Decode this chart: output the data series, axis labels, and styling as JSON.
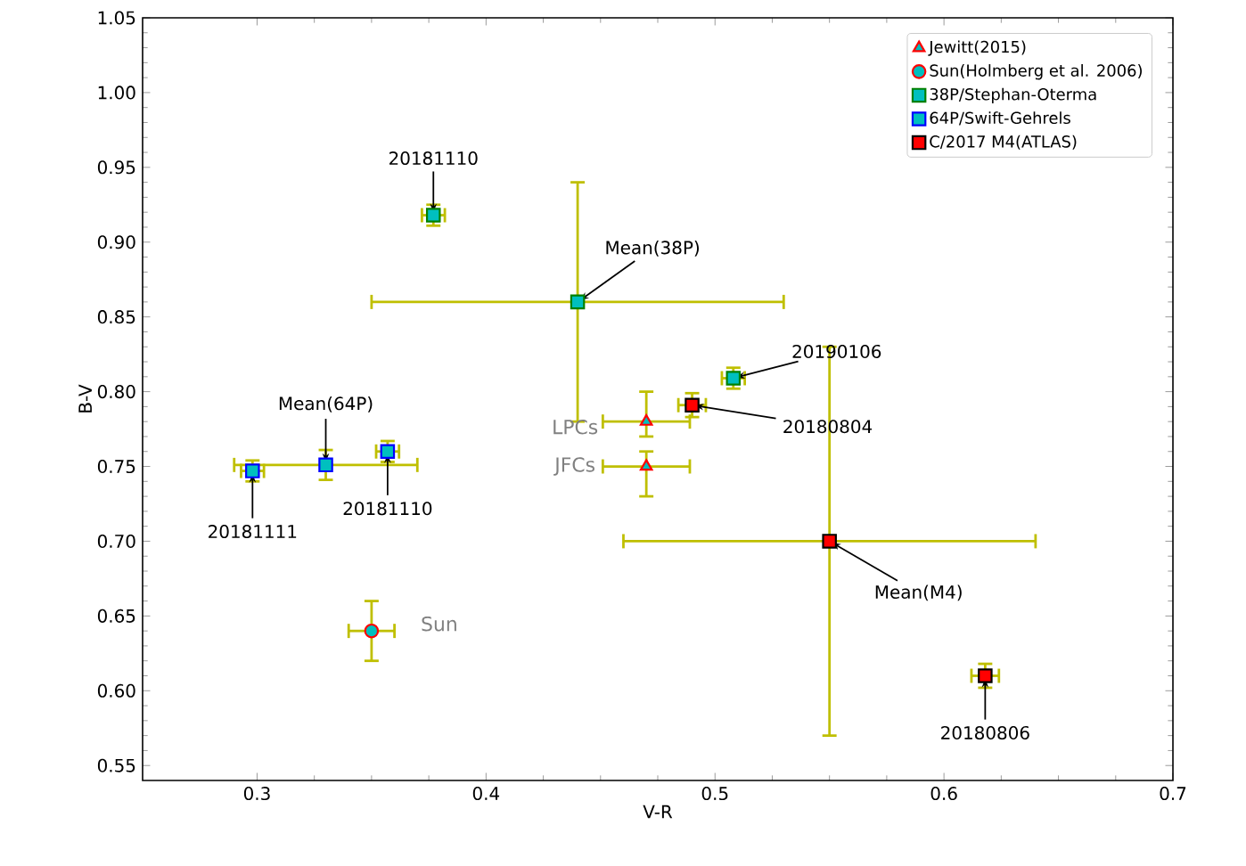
{
  "chart_data": {
    "type": "scatter",
    "xlabel": "V-R",
    "ylabel": "B-V",
    "xlim": [
      0.25,
      0.7
    ],
    "ylim": [
      0.54,
      1.05
    ],
    "xticks": [
      0.3,
      0.4,
      0.5,
      0.6,
      0.7
    ],
    "yticks": [
      0.55,
      {
        "value": 0.6,
        "label": "0.60"
      },
      0.65,
      {
        "value": 0.7,
        "label": "0.70"
      },
      0.75,
      {
        "value": 0.8,
        "label": "0.80"
      },
      0.85,
      {
        "value": 0.9,
        "label": "0.90"
      },
      0.95,
      {
        "value": 1.0,
        "label": "1.00"
      },
      1.05
    ],
    "grid": false,
    "legend": "top right",
    "series": [
      {
        "name": "Jewitt(2015)",
        "color": "#ff0000",
        "marker": "triangle",
        "x": [
          0.47,
          0.47
        ],
        "values": [
          0.78,
          0.75
        ],
        "errors": [
          [
            0.77,
            0.8
          ],
          [
            0.73,
            0.76
          ]
        ],
        "xerrors": [
          0.019,
          0.019
        ]
      },
      {
        "name": "Sun(Holmberg et al. 2006)",
        "color": "#ff0000",
        "marker": "circle",
        "x": [
          0.35
        ],
        "values": [
          0.64
        ],
        "errors": [
          0.02
        ],
        "xerrors": [
          0.01
        ]
      },
      {
        "name": "38P/Stephan-Oterma",
        "color": "#008000",
        "marker": "square",
        "x": [
          0.377,
          0.44,
          0.508
        ],
        "values": [
          0.918,
          0.86,
          0.809
        ],
        "errors": [
          0.007,
          0.08,
          0.007
        ],
        "xerrors": [
          0.005,
          0.09,
          0.005
        ]
      },
      {
        "name": "64P/Swift-Gehrels",
        "color": "#0000ff",
        "marker": "square",
        "x": [
          0.298,
          0.33,
          0.357
        ],
        "values": [
          0.747,
          0.751,
          0.76
        ],
        "errors": [
          0.007,
          0.01,
          0.007
        ],
        "xerrors": [
          0.005,
          0.04,
          0.005
        ]
      },
      {
        "name": "C/2017 M4(ATLAS)",
        "color": "#ff0000",
        "marker": "square",
        "x": [
          0.49,
          0.55,
          0.618
        ],
        "values": [
          0.791,
          0.7,
          0.61
        ],
        "errors": [
          0.008,
          0.13,
          0.008
        ],
        "xerrors": [
          0.006,
          0.09,
          0.006
        ]
      }
    ],
    "annotations": [
      {
        "text": "20181110",
        "x": 0.377,
        "y": 0.918
      },
      {
        "text": "Mean(38P)",
        "x": 0.44,
        "y": 0.86
      },
      {
        "text": "20190106",
        "x": 0.508,
        "y": 0.809
      },
      {
        "text": "20180804",
        "x": 0.49,
        "y": 0.791
      },
      {
        "text": "Mean(64P)",
        "x": 0.33,
        "y": 0.751
      },
      {
        "text": "20181111",
        "x": 0.298,
        "y": 0.747
      },
      {
        "text": "20181110",
        "x": 0.357,
        "y": 0.76
      },
      {
        "text": "Mean(M4)",
        "x": 0.55,
        "y": 0.7
      },
      {
        "text": "20180806",
        "x": 0.618,
        "y": 0.61
      },
      {
        "text": "LPCs",
        "x": 0.47,
        "y": 0.78
      },
      {
        "text": "JFCs",
        "x": 0.47,
        "y": 0.75
      },
      {
        "text": "Sun",
        "x": 0.35,
        "y": 0.64
      }
    ]
  }
}
